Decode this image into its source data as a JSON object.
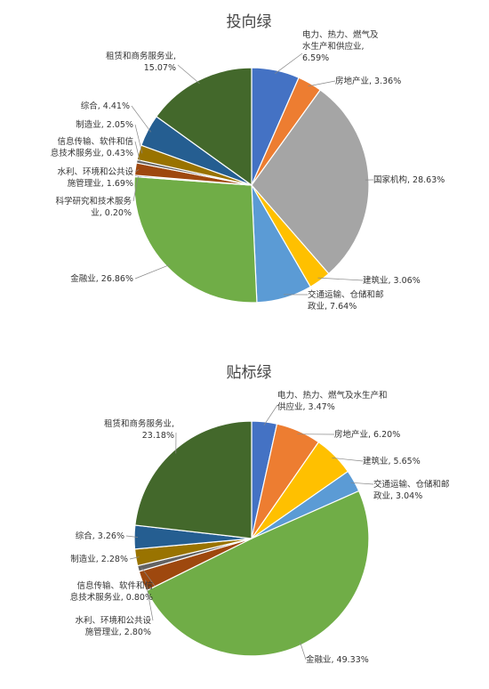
{
  "chart_data": [
    {
      "type": "pie",
      "title": "投向绿",
      "slices": [
        {
          "name": "电力、热力、燃气及水生产和供应业",
          "value": 6.59,
          "label": [
            "电力、热力、燃气及",
            "水生产和供应业,",
            "6.59%"
          ],
          "color": "#4472c4"
        },
        {
          "name": "房地产业",
          "value": 3.36,
          "label": [
            "房地产业, 3.36%"
          ],
          "color": "#ed7d31"
        },
        {
          "name": "国家机构",
          "value": 28.63,
          "label": [
            "国家机构, 28.63%"
          ],
          "color": "#a5a5a5"
        },
        {
          "name": "建筑业",
          "value": 3.06,
          "label": [
            "建筑业, 3.06%"
          ],
          "color": "#ffc000"
        },
        {
          "name": "交通运输、仓储和邮政业",
          "value": 7.64,
          "label": [
            "交通运输、仓储和邮",
            "政业, 7.64%"
          ],
          "color": "#5b9bd5"
        },
        {
          "name": "金融业",
          "value": 26.86,
          "label": [
            "金融业, 26.86%"
          ],
          "color": "#70ad47"
        },
        {
          "name": "科学研究和技术服务业",
          "value": 0.2,
          "label": [
            "科学研究和技术服务",
            "业, 0.20%"
          ],
          "color": "#264478"
        },
        {
          "name": "水利、环境和公共设施管理业",
          "value": 1.69,
          "label": [
            "水利、环境和公共设",
            "施管理业, 1.69%"
          ],
          "color": "#9e480e"
        },
        {
          "name": "信息传输、软件和信息技术服务业",
          "value": 0.43,
          "label": [
            "信息传输、软件和信",
            "息技术服务业, 0.43%"
          ],
          "color": "#636363"
        },
        {
          "name": "制造业",
          "value": 2.05,
          "label": [
            "制造业, 2.05%"
          ],
          "color": "#997300"
        },
        {
          "name": "综合",
          "value": 4.41,
          "label": [
            "综合, 4.41%"
          ],
          "color": "#255e91"
        },
        {
          "name": "租赁和商务服务业",
          "value": 15.07,
          "label": [
            "租赁和商务服务业,",
            "15.07%"
          ],
          "color": "#43682b"
        }
      ]
    },
    {
      "type": "pie",
      "title": "贴标绿",
      "slices": [
        {
          "name": "电力、热力、燃气及水生产和供应业",
          "value": 3.47,
          "label": [
            "电力、热力、燃气及水生产和",
            "供应业, 3.47%"
          ],
          "color": "#4472c4"
        },
        {
          "name": "房地产业",
          "value": 6.2,
          "label": [
            "房地产业, 6.20%"
          ],
          "color": "#ed7d31"
        },
        {
          "name": "建筑业",
          "value": 5.65,
          "label": [
            "建筑业, 5.65%"
          ],
          "color": "#ffc000"
        },
        {
          "name": "交通运输、仓储和邮政业",
          "value": 3.04,
          "label": [
            "交通运输、仓储和邮",
            "政业, 3.04%"
          ],
          "color": "#5b9bd5"
        },
        {
          "name": "金融业",
          "value": 49.33,
          "label": [
            "金融业, 49.33%"
          ],
          "color": "#70ad47"
        },
        {
          "name": "水利、环境和公共设施管理业",
          "value": 2.8,
          "label": [
            "水利、环境和公共设",
            "施管理业, 2.80%"
          ],
          "color": "#9e480e"
        },
        {
          "name": "信息传输、软件和信息技术服务业",
          "value": 0.8,
          "label": [
            "信息传输、软件和信",
            "息技术服务业, 0.80%"
          ],
          "color": "#636363"
        },
        {
          "name": "制造业",
          "value": 2.28,
          "label": [
            "制造业, 2.28%"
          ],
          "color": "#997300"
        },
        {
          "name": "综合",
          "value": 3.26,
          "label": [
            "综合, 3.26%"
          ],
          "color": "#255e91"
        },
        {
          "name": "租赁和商务服务业",
          "value": 23.18,
          "label": [
            "租赁和商务服务业,",
            "23.18%"
          ],
          "color": "#43682b"
        }
      ]
    }
  ]
}
